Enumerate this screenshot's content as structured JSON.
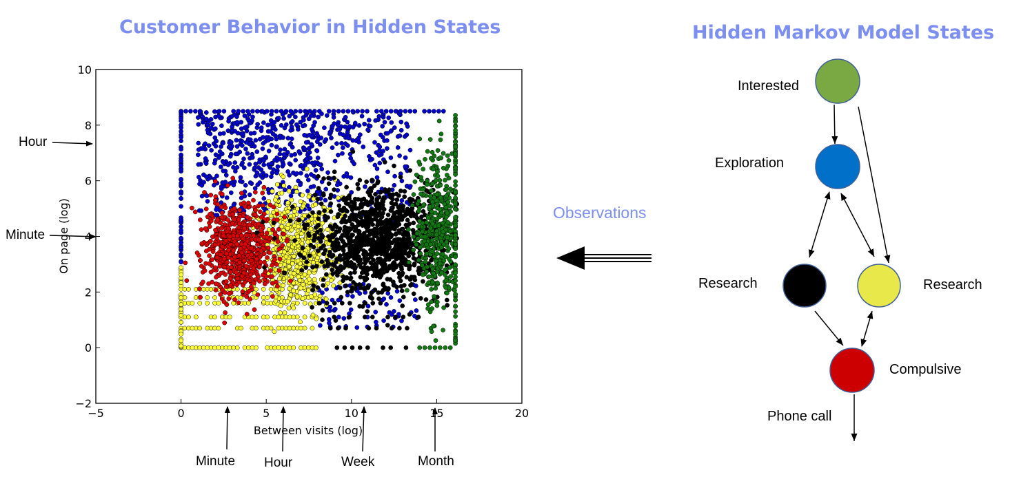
{
  "left_panel": {
    "title": "Customer Behavior in Hidden States",
    "title_color": "#7c8ff0",
    "y_annotations": [
      "Hour",
      "Minute"
    ],
    "x_annotations": [
      "Minute",
      "Hour",
      "Week",
      "Month"
    ]
  },
  "chart_data": {
    "type": "scatter",
    "xlabel": "Between visits (log)",
    "ylabel": "On page (log)",
    "xlim": [
      -5,
      20
    ],
    "ylim": [
      -2,
      10
    ],
    "xticks": [
      "−5",
      "0",
      "5",
      "10",
      "15",
      "20"
    ],
    "yticks": [
      "−2",
      "0",
      "2",
      "4",
      "6",
      "8",
      "10"
    ],
    "grid": false,
    "series": [
      {
        "color": "#0000cc",
        "cluster_center": [
          7,
          6.5
        ],
        "spread": [
          4,
          1.5
        ]
      },
      {
        "color": "#dd0000",
        "cluster_center": [
          3.5,
          3.8
        ],
        "spread": [
          1.3,
          1.0
        ]
      },
      {
        "color": "#ffff33",
        "cluster_center": [
          6.8,
          3.5
        ],
        "spread": [
          1.3,
          1.0
        ]
      },
      {
        "color": "#000000",
        "cluster_center": [
          11.5,
          3.7
        ],
        "spread": [
          2.3,
          1.2
        ]
      },
      {
        "color": "#117711",
        "cluster_center": [
          15.3,
          4
        ],
        "spread": [
          0.8,
          1.5
        ]
      }
    ]
  },
  "center": {
    "label": "Observations",
    "label_color": "#7c8ff0"
  },
  "right_panel": {
    "title": "Hidden Markov Model States",
    "title_color": "#7c8ff0",
    "states": [
      {
        "id": "interested",
        "label": "Interested",
        "color": "#7aa843"
      },
      {
        "id": "exploration",
        "label": "Exploration",
        "color": "#0070c8"
      },
      {
        "id": "research_black",
        "label": "Research",
        "color": "#000000"
      },
      {
        "id": "research_yellow",
        "label": "Research",
        "color": "#e8e84a"
      },
      {
        "id": "compulsive",
        "label": "Compulsive",
        "color": "#cc0000"
      }
    ],
    "exit_label": "Phone call"
  }
}
